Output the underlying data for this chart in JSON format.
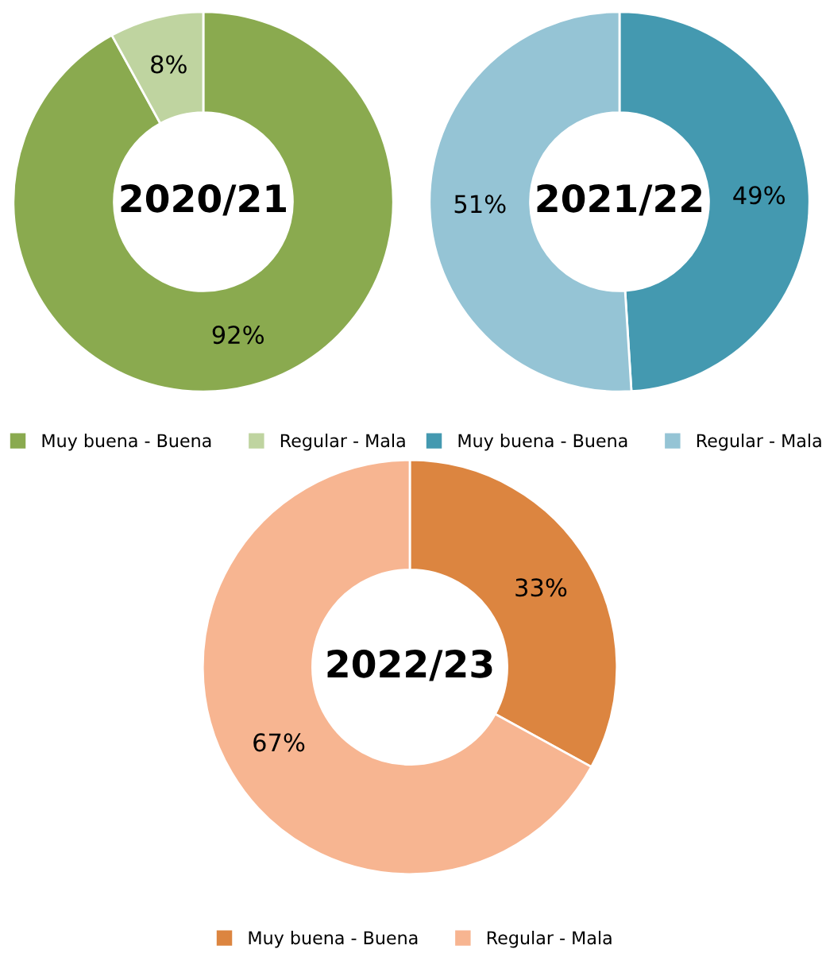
{
  "chart_data": [
    {
      "type": "donut",
      "title": "2020/21",
      "categories": [
        "Muy buena - Buena",
        "Regular - Mala"
      ],
      "values": [
        92,
        8
      ],
      "colors": [
        "#8aaa4f",
        "#bfd4a0"
      ],
      "value_labels": [
        "92%",
        "8%"
      ],
      "legend": "bottom"
    },
    {
      "type": "donut",
      "title": "2021/22",
      "categories": [
        "Muy buena - Buena",
        "Regular - Mala"
      ],
      "values": [
        49,
        51
      ],
      "colors": [
        "#4499b0",
        "#95c4d5"
      ],
      "value_labels": [
        "49%",
        "51%"
      ],
      "legend": "bottom"
    },
    {
      "type": "donut",
      "title": "2022/23",
      "categories": [
        "Muy buena - Buena",
        "Regular - Mala"
      ],
      "values": [
        33,
        67
      ],
      "colors": [
        "#dc8540",
        "#f7b591"
      ],
      "value_labels": [
        "33%",
        "67%"
      ],
      "legend": "bottom"
    }
  ]
}
